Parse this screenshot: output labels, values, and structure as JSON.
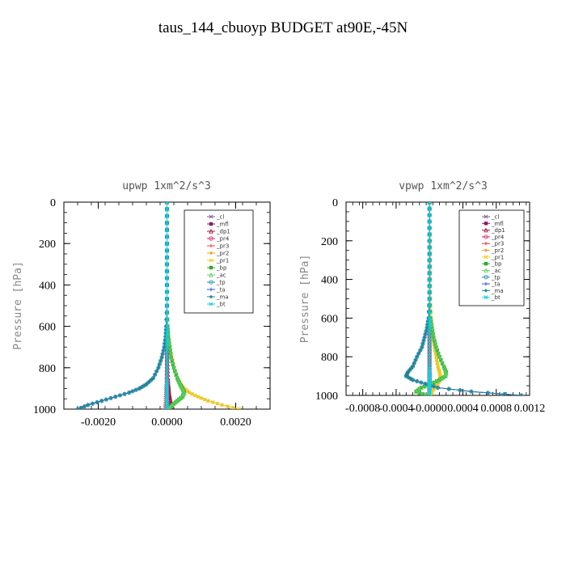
{
  "title": "taus_144_cbuoyp  BUDGET at90E,-45N",
  "legend_labels": [
    "_cl",
    "_mfl",
    "_dp1",
    "_pr4",
    "_pr3",
    "_pr2",
    "_pr1",
    "_bp",
    "_ac",
    "_tp",
    "_ta",
    "_ma",
    "_bt"
  ],
  "series_colors": {
    "_cl": "#8c5aa0",
    "_mfl": "#8b1a6a",
    "_dp1": "#a8143c",
    "_pr4": "#e0206e",
    "_pr3": "#e04040",
    "_pr2": "#f0a030",
    "_pr1": "#e8d020",
    "_bp": "#2ea82e",
    "_ac": "#60d060",
    "_tp": "#2a8ac0",
    "_ta": "#3050e0",
    "_ma": "#208888",
    "_bt": "#10d0e0"
  },
  "chart_data": [
    {
      "type": "line",
      "title": "upwp   1xm^2/s^3",
      "ylabel": "Pressure [hPa]",
      "xlabel": "",
      "xlim": [
        -0.003,
        0.003
      ],
      "ylim": [
        1000,
        0
      ],
      "xticks": [
        -0.002,
        0.0,
        0.002
      ],
      "xtick_labels": [
        "-0.0020",
        "0.0000",
        "0.0020"
      ],
      "yticks": [
        0,
        200,
        400,
        600,
        800,
        1000
      ],
      "ytick_labels": [
        "0",
        "200",
        "400",
        "600",
        "800",
        "1000"
      ],
      "pressure": [
        0,
        100,
        200,
        300,
        400,
        500,
        600,
        650,
        700,
        750,
        800,
        850,
        880,
        900,
        920,
        940,
        960,
        980,
        1000
      ],
      "series": [
        {
          "name": "_cl",
          "values": [
            0,
            0,
            0,
            0,
            0,
            0,
            0,
            0,
            0,
            0,
            0,
            0,
            0,
            0,
            0,
            0,
            0,
            0,
            0
          ]
        },
        {
          "name": "_mfl",
          "values": [
            0,
            0,
            0,
            0,
            0,
            0,
            0,
            0,
            0,
            0,
            0,
            0,
            0,
            0,
            0,
            0,
            0,
            0,
            0
          ]
        },
        {
          "name": "_dp1",
          "values": [
            0,
            0,
            0,
            0,
            0,
            0,
            0,
            0,
            0,
            1e-05,
            2e-05,
            3e-05,
            4e-05,
            5e-05,
            6e-05,
            8e-05,
            0.0001,
            0.00012,
            0.00015
          ]
        },
        {
          "name": "_pr4",
          "values": [
            0,
            0,
            0,
            0,
            0,
            0,
            0,
            0,
            0,
            0,
            0,
            0,
            0,
            0,
            0,
            0,
            0,
            0,
            0
          ]
        },
        {
          "name": "_pr3",
          "values": [
            0,
            0,
            0,
            0,
            0,
            0,
            0,
            0,
            0,
            -1e-05,
            -1e-05,
            -2e-05,
            -2e-05,
            -3e-05,
            -3e-05,
            -4e-05,
            -4e-05,
            -5e-05,
            -5e-05
          ]
        },
        {
          "name": "_pr2",
          "values": [
            0,
            0,
            0,
            0,
            0,
            0,
            2e-05,
            4e-05,
            8e-05,
            0.00014,
            0.0002,
            0.0003,
            0.0004,
            0.0005,
            0.00065,
            0.0009,
            0.0012,
            0.0016,
            0.0021
          ]
        },
        {
          "name": "_pr1",
          "values": [
            0,
            0,
            0,
            0,
            0,
            0,
            2e-05,
            4e-05,
            8e-05,
            0.00014,
            0.0002,
            0.0003,
            0.0004,
            0.0005,
            0.00065,
            0.0009,
            0.0012,
            0.0016,
            0.0021
          ]
        },
        {
          "name": "_bp",
          "values": [
            0,
            0,
            0,
            0,
            0,
            0,
            2e-05,
            4e-05,
            8e-05,
            0.00012,
            0.0002,
            0.0003,
            0.00038,
            0.00045,
            0.0005,
            0.00045,
            0.0003,
            0.00015,
            5e-05
          ]
        },
        {
          "name": "_ac",
          "values": [
            0,
            0,
            0,
            0,
            0,
            0,
            2e-05,
            4e-05,
            8e-05,
            0.00012,
            0.0002,
            0.0003,
            0.00038,
            0.00045,
            0.0005,
            0.00045,
            0.0003,
            0.00015,
            5e-05
          ]
        },
        {
          "name": "_tp",
          "values": [
            0,
            0,
            0,
            0,
            0,
            0,
            -2e-05,
            -4e-05,
            -8e-05,
            -0.00015,
            -0.00025,
            -0.0004,
            -0.0006,
            -0.0008,
            -0.0011,
            -0.0015,
            -0.0019,
            -0.0023,
            -0.0026
          ]
        },
        {
          "name": "_ta",
          "values": [
            0,
            0,
            0,
            0,
            0,
            0,
            -2e-05,
            -4e-05,
            -8e-05,
            -0.00015,
            -0.00025,
            -0.0004,
            -0.0006,
            -0.0008,
            -0.0011,
            -0.0015,
            -0.0019,
            -0.0023,
            -0.0026
          ]
        },
        {
          "name": "_ma",
          "values": [
            0,
            0,
            0,
            0,
            0,
            0,
            -2e-05,
            -4e-05,
            -8e-05,
            -0.00015,
            -0.00025,
            -0.0004,
            -0.0006,
            -0.0008,
            -0.0011,
            -0.0015,
            -0.0019,
            -0.0023,
            -0.0026
          ]
        },
        {
          "name": "_bt",
          "values": [
            0,
            0,
            0,
            0,
            0,
            0,
            0,
            0,
            0,
            0,
            0,
            0,
            0,
            0,
            0,
            0,
            0,
            0,
            0
          ]
        }
      ]
    },
    {
      "type": "line",
      "title": "vpwp   1xm^2/s^3",
      "ylabel": "Pressure [hPa]",
      "xlabel": "",
      "xlim": [
        -0.001,
        0.0012
      ],
      "ylim": [
        1000,
        0
      ],
      "xticks": [
        -0.0008,
        -0.0004,
        0.0,
        0.0004,
        0.0008,
        0.0012
      ],
      "xtick_labels": [
        "-0.0008",
        "-0.0004",
        "-0.0000",
        "0.0004",
        "0.0008",
        "0.0012"
      ],
      "yticks": [
        0,
        200,
        400,
        600,
        800,
        1000
      ],
      "ytick_labels": [
        "0",
        "200",
        "400",
        "600",
        "800",
        "1000"
      ],
      "pressure": [
        0,
        100,
        200,
        300,
        400,
        500,
        600,
        650,
        700,
        750,
        800,
        850,
        880,
        900,
        920,
        940,
        960,
        980,
        1000
      ],
      "series": [
        {
          "name": "_cl",
          "values": [
            0,
            0,
            0,
            0,
            0,
            0,
            0,
            0,
            0,
            0,
            0,
            0,
            0,
            0,
            0,
            0,
            0,
            0,
            0
          ]
        },
        {
          "name": "_mfl",
          "values": [
            0,
            0,
            0,
            0,
            0,
            0,
            0,
            0,
            0,
            0,
            0,
            0,
            0,
            0,
            0,
            0,
            0,
            0,
            0
          ]
        },
        {
          "name": "_dp1",
          "values": [
            0,
            0,
            0,
            0,
            0,
            0,
            0,
            0,
            0,
            0,
            0,
            0,
            0,
            0,
            0,
            0,
            0,
            0,
            0
          ]
        },
        {
          "name": "_pr4",
          "values": [
            0,
            0,
            0,
            0,
            0,
            0,
            0,
            0,
            0,
            0,
            0,
            0,
            0,
            0,
            0,
            0,
            0,
            0,
            0
          ]
        },
        {
          "name": "_pr3",
          "values": [
            0,
            0,
            0,
            0,
            0,
            0,
            0,
            0,
            0,
            0,
            0,
            0,
            0,
            0,
            0,
            0,
            0,
            0,
            0
          ]
        },
        {
          "name": "_pr2",
          "values": [
            0,
            0,
            1e-05,
            1e-05,
            1e-05,
            1e-05,
            2e-05,
            3e-05,
            4e-05,
            6e-05,
            8e-05,
            0.0001,
            0.00012,
            0.00013,
            0.00012,
            0.0001,
            6e-05,
            3e-05,
            2e-05
          ]
        },
        {
          "name": "_pr1",
          "values": [
            0,
            0,
            1e-05,
            1e-05,
            1e-05,
            1e-05,
            2e-05,
            3e-05,
            4e-05,
            6e-05,
            8e-05,
            0.0001,
            0.00012,
            0.00013,
            0.00012,
            0.0001,
            6e-05,
            3e-05,
            2e-05
          ]
        },
        {
          "name": "_bp",
          "values": [
            0,
            0,
            0,
            0,
            0,
            0,
            1e-05,
            3e-05,
            5e-05,
            8e-05,
            0.00012,
            0.00017,
            0.0002,
            0.00019,
            0.00012,
            2e-05,
            -0.0001,
            -0.00016,
            -4e-05
          ]
        },
        {
          "name": "_ac",
          "values": [
            0,
            0,
            0,
            0,
            0,
            0,
            1e-05,
            3e-05,
            5e-05,
            8e-05,
            0.00012,
            0.00017,
            0.0002,
            0.00019,
            0.00012,
            2e-05,
            -0.0001,
            -0.00016,
            -4e-05
          ]
        },
        {
          "name": "_tp",
          "values": [
            0,
            0,
            0,
            0,
            0,
            0,
            -1e-05,
            -3e-05,
            -6e-05,
            -9e-05,
            -0.00015,
            -0.0002,
            -0.00026,
            -0.00028,
            -0.0002,
            -5e-05,
            0.0001,
            0.0005,
            0.0011
          ]
        },
        {
          "name": "_ta",
          "values": [
            0,
            0,
            0,
            0,
            0,
            0,
            -1e-05,
            -3e-05,
            -6e-05,
            -9e-05,
            -0.00015,
            -0.0002,
            -0.00026,
            -0.00028,
            -0.0002,
            -5e-05,
            0.0001,
            0.0005,
            0.0011
          ]
        },
        {
          "name": "_ma",
          "values": [
            0,
            0,
            0,
            0,
            0,
            0,
            -1e-05,
            -3e-05,
            -6e-05,
            -9e-05,
            -0.00015,
            -0.0002,
            -0.00026,
            -0.00028,
            -0.0002,
            -5e-05,
            0.0001,
            0.0005,
            0.0011
          ]
        },
        {
          "name": "_bt",
          "values": [
            0,
            0,
            0,
            0,
            0,
            0,
            0,
            0,
            0,
            0,
            0,
            0,
            0,
            0,
            0,
            0,
            0,
            0,
            0
          ]
        }
      ]
    }
  ]
}
